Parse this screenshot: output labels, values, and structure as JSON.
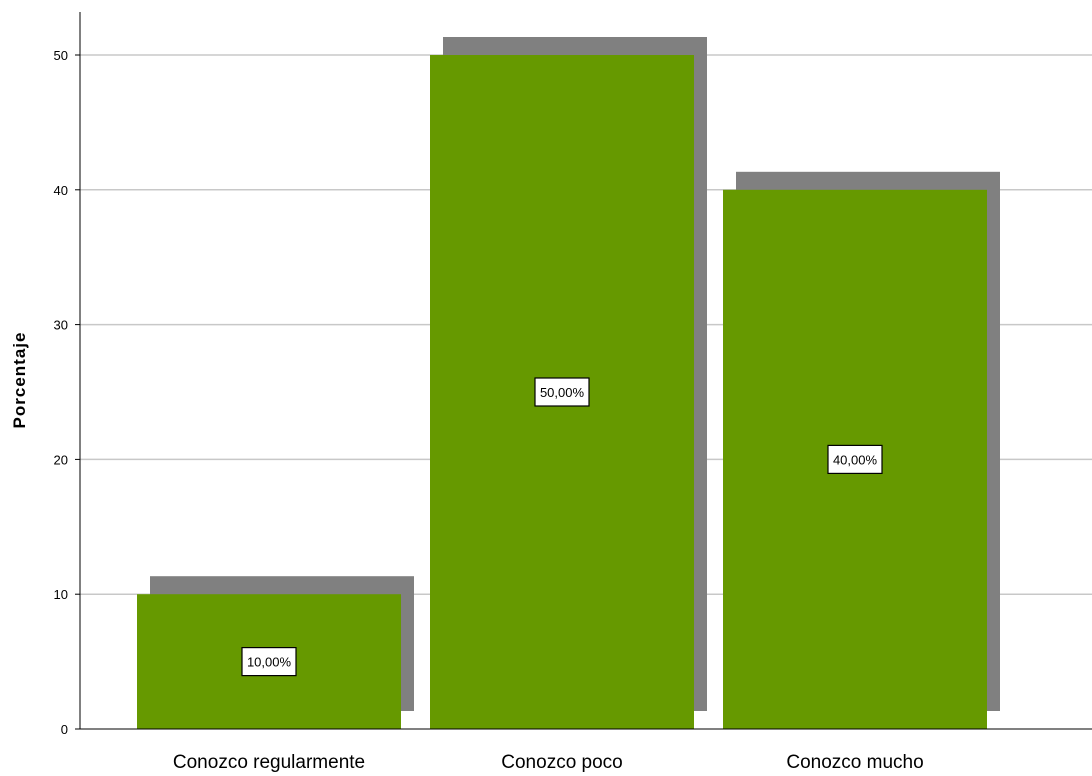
{
  "chart_data": {
    "type": "bar",
    "categories": [
      "Conozco regularmente",
      "Conozco poco",
      "Conozco mucho"
    ],
    "values": [
      10,
      50,
      40
    ],
    "data_labels": [
      "10,00%",
      "50,00%",
      "40,00%"
    ],
    "ylabel": "Porcentaje",
    "xlabel": "",
    "ylim": [
      0,
      50
    ],
    "yticks": [
      "0",
      "10",
      "20",
      "30",
      "40",
      "50"
    ],
    "grid": true,
    "colors": {
      "bar": "#669900",
      "shadow": "#808080",
      "grid": "#c8c8c8",
      "axis": "#000000"
    }
  }
}
